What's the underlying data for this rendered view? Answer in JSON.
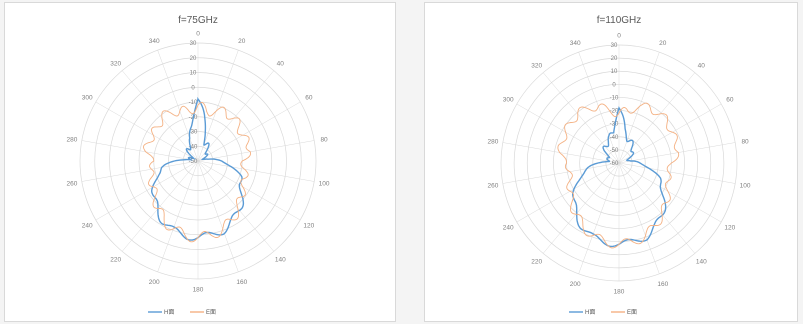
{
  "colors": {
    "h_plane": "#5b9bd5",
    "e_plane": "#f4b183",
    "grid": "#d9d9d9"
  },
  "chart_data": [
    {
      "type": "polar-line",
      "title": "f=75GHz",
      "angular_ticks": [
        "0",
        "20",
        "40",
        "60",
        "80",
        "100",
        "120",
        "140",
        "160",
        "180",
        "200",
        "220",
        "240",
        "260",
        "280",
        "300",
        "320",
        "340"
      ],
      "radial_ticks": [
        "30",
        "20",
        "10",
        "0",
        "-10",
        "-20",
        "-30",
        "-40",
        "-50"
      ],
      "rlim": [
        -50,
        30
      ],
      "legend": [
        "H面",
        "E面"
      ],
      "legend_position": "bottom",
      "series": [
        {
          "name": "H面",
          "angles": [
            0,
            10,
            20,
            30,
            40,
            50,
            60,
            70,
            80,
            90,
            100,
            110,
            120,
            130,
            140,
            150,
            160,
            170,
            180,
            190,
            200,
            210,
            220,
            230,
            240,
            250,
            260,
            270,
            280,
            290,
            300,
            310,
            320,
            330,
            340,
            350
          ],
          "values": [
            -8,
            -24,
            -36,
            -38,
            -40,
            -42,
            -45,
            -45,
            -44,
            -34,
            -26,
            -20,
            -16,
            -11,
            -7,
            -3,
            0,
            1,
            2,
            1,
            0,
            -3,
            -7,
            -11,
            -16,
            -20,
            -26,
            -34,
            -44,
            -45,
            -45,
            -42,
            -40,
            -38,
            -36,
            -24
          ]
        },
        {
          "name": "E面",
          "angles": [
            0,
            10,
            20,
            30,
            40,
            50,
            60,
            70,
            80,
            90,
            100,
            110,
            120,
            130,
            140,
            150,
            160,
            170,
            180,
            190,
            200,
            210,
            220,
            230,
            240,
            250,
            260,
            270,
            280,
            290,
            300,
            310,
            320,
            330,
            340,
            350
          ],
          "values": [
            -12,
            -16,
            -14,
            -12,
            -12,
            -14,
            -15,
            -14,
            -14,
            -20,
            -18,
            -16,
            -15,
            -12,
            -8,
            -4,
            -1,
            1,
            2,
            1,
            -1,
            -4,
            -8,
            -12,
            -15,
            -16,
            -18,
            -20,
            -14,
            -14,
            -15,
            -14,
            -12,
            -12,
            -14,
            -16
          ]
        }
      ]
    },
    {
      "type": "polar-line",
      "title": "f=110GHz",
      "angular_ticks": [
        "0",
        "20",
        "40",
        "60",
        "80",
        "100",
        "120",
        "140",
        "160",
        "180",
        "200",
        "220",
        "240",
        "260",
        "280",
        "300",
        "320",
        "340"
      ],
      "radial_ticks": [
        "30",
        "20",
        "10",
        "0",
        "-10",
        "-20",
        "-30",
        "-40",
        "-50",
        "-60"
      ],
      "rlim": [
        -60,
        30
      ],
      "legend": [
        "H面",
        "E面"
      ],
      "legend_position": "bottom",
      "series": [
        {
          "name": "H面",
          "angles": [
            0,
            10,
            20,
            30,
            40,
            50,
            60,
            70,
            80,
            90,
            100,
            110,
            120,
            130,
            140,
            150,
            160,
            170,
            180,
            190,
            200,
            210,
            220,
            230,
            240,
            250,
            260,
            270,
            280,
            290,
            300,
            310,
            320,
            330,
            340,
            350
          ],
          "values": [
            -18,
            -35,
            -40,
            -42,
            -44,
            -46,
            -50,
            -52,
            -52,
            -44,
            -36,
            -28,
            -22,
            -15,
            -9,
            -4,
            0,
            1,
            2,
            1,
            0,
            -4,
            -9,
            -15,
            -22,
            -28,
            -36,
            -44,
            -52,
            -52,
            -50,
            -46,
            -44,
            -42,
            -40,
            -35
          ]
        },
        {
          "name": "E面",
          "angles": [
            0,
            10,
            20,
            30,
            40,
            50,
            60,
            70,
            80,
            90,
            100,
            110,
            120,
            130,
            140,
            150,
            160,
            170,
            180,
            190,
            200,
            210,
            220,
            230,
            240,
            250,
            260,
            270,
            280,
            290,
            300,
            310,
            320,
            330,
            340,
            350
          ],
          "values": [
            -22,
            -20,
            -14,
            -12,
            -11,
            -12,
            -13,
            -14,
            -14,
            -20,
            -22,
            -20,
            -17,
            -13,
            -9,
            -5,
            -1,
            1,
            2,
            1,
            -1,
            -5,
            -9,
            -13,
            -17,
            -20,
            -22,
            -20,
            -14,
            -14,
            -13,
            -12,
            -11,
            -12,
            -14,
            -20
          ]
        }
      ]
    }
  ]
}
